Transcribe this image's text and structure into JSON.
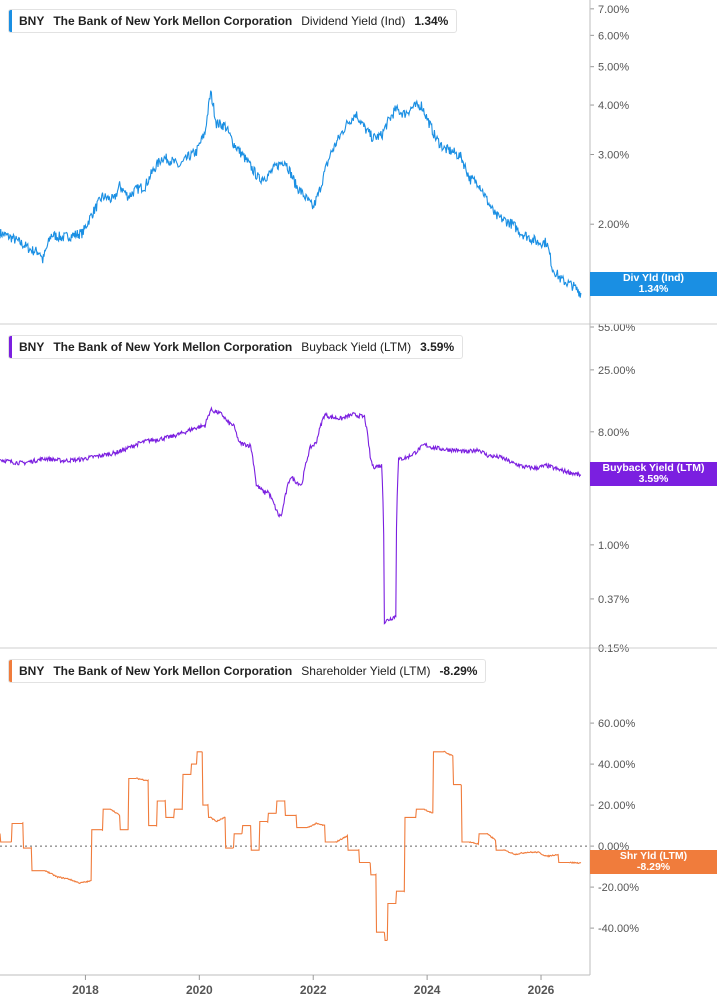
{
  "chart_data": [
    {
      "type": "line",
      "ticker": "BNY",
      "company": "The Bank of New York Mellon Corporation",
      "metric": "Dividend Yield (Ind)",
      "value_label": "1.34%",
      "tag_label": "Div Yld (Ind)",
      "tag_value": "1.34%",
      "color": "#1a8fe3",
      "yscale": "log",
      "ylim": [
        1.25,
        7.2
      ],
      "yticks": [
        {
          "v": 7,
          "label": "7.00%"
        },
        {
          "v": 6,
          "label": "6.00%"
        },
        {
          "v": 5,
          "label": "5.00%"
        },
        {
          "v": 4,
          "label": "4.00%"
        },
        {
          "v": 3,
          "label": "3.00%"
        },
        {
          "v": 2,
          "label": "2.00%"
        }
      ],
      "x": [
        2016.5,
        2016.7,
        2016.9,
        2017.05,
        2017.2,
        2017.25,
        2017.4,
        2017.6,
        2017.8,
        2017.95,
        2018.1,
        2018.3,
        2018.5,
        2018.6,
        2018.75,
        2018.9,
        2019.05,
        2019.2,
        2019.35,
        2019.5,
        2019.65,
        2019.8,
        2019.95,
        2020.1,
        2020.2,
        2020.3,
        2020.45,
        2020.6,
        2020.75,
        2020.9,
        2021.05,
        2021.2,
        2021.35,
        2021.5,
        2021.7,
        2021.85,
        2022.0,
        2022.1,
        2022.2,
        2022.3,
        2022.45,
        2022.6,
        2022.75,
        2022.9,
        2023.05,
        2023.2,
        2023.3,
        2023.45,
        2023.6,
        2023.75,
        2023.9,
        2024.0,
        2024.15,
        2024.3,
        2024.45,
        2024.6,
        2024.75,
        2024.9,
        2025.05,
        2025.2,
        2025.35,
        2025.5,
        2025.65,
        2025.8,
        2025.95,
        2026.1,
        2026.2,
        2026.35,
        2026.55,
        2026.7
      ],
      "values": [
        1.9,
        1.85,
        1.78,
        1.72,
        1.7,
        1.62,
        1.88,
        1.85,
        1.88,
        1.9,
        2.1,
        2.35,
        2.3,
        2.5,
        2.35,
        2.45,
        2.5,
        2.75,
        2.95,
        2.9,
        2.8,
        2.95,
        3.05,
        3.4,
        4.3,
        3.6,
        3.55,
        3.2,
        3.0,
        2.8,
        2.6,
        2.65,
        2.8,
        2.9,
        2.5,
        2.35,
        2.2,
        2.4,
        2.7,
        3.0,
        3.3,
        3.6,
        3.8,
        3.5,
        3.3,
        3.35,
        3.6,
        3.9,
        3.8,
        3.95,
        4.0,
        3.7,
        3.3,
        3.1,
        3.05,
        2.95,
        2.6,
        2.55,
        2.3,
        2.1,
        2.05,
        2.0,
        1.9,
        1.85,
        1.8,
        1.8,
        1.55,
        1.45,
        1.4,
        1.34
      ],
      "tag_at": 1.405
    },
    {
      "type": "line",
      "ticker": "BNY",
      "company": "The Bank of New York Mellon Corporation",
      "metric": "Buyback Yield (LTM)",
      "value_label": "3.59%",
      "tag_label": "Buyback Yield (LTM)",
      "tag_value": "3.59%",
      "color": "#7b1fe0",
      "yscale": "log",
      "ylim": [
        0.15,
        55
      ],
      "yticks": [
        {
          "v": 55,
          "label": "55.00%"
        },
        {
          "v": 25,
          "label": "25.00%"
        },
        {
          "v": 8,
          "label": "8.00%"
        },
        {
          "v": 1,
          "label": "1.00%"
        },
        {
          "v": 0.37,
          "label": "0.37%"
        },
        {
          "v": 0.15,
          "label": "0.15%"
        }
      ],
      "x": [
        2016.5,
        2016.7,
        2016.9,
        2017.1,
        2017.3,
        2017.6,
        2017.9,
        2018.1,
        2018.3,
        2018.5,
        2018.7,
        2018.95,
        2019.1,
        2019.3,
        2019.5,
        2019.7,
        2019.9,
        2020.1,
        2020.2,
        2020.4,
        2020.5,
        2020.6,
        2020.7,
        2020.9,
        2021.0,
        2021.15,
        2021.2,
        2021.35,
        2021.4,
        2021.45,
        2021.6,
        2021.7,
        2021.8,
        2021.95,
        2022.05,
        2022.2,
        2022.3,
        2022.5,
        2022.7,
        2022.9,
        2023.0,
        2023.05,
        2023.2,
        2023.25,
        2023.3,
        2023.45,
        2023.5,
        2023.65,
        2023.8,
        2023.95,
        2024.1,
        2024.3,
        2024.5,
        2024.7,
        2024.9,
        2025.05,
        2025.15,
        2025.3,
        2025.5,
        2025.7,
        2025.9,
        2026.1,
        2026.3,
        2026.5,
        2026.7
      ],
      "values": [
        4.8,
        4.6,
        4.5,
        4.7,
        4.9,
        4.7,
        4.8,
        5.0,
        5.2,
        5.4,
        5.8,
        6.5,
        6.8,
        7.0,
        7.3,
        7.8,
        8.5,
        9.0,
        12,
        11,
        9.5,
        9,
        6.5,
        6.2,
        3.0,
        2.6,
        2.7,
        1.9,
        1.7,
        1.75,
        3.5,
        3.2,
        3.0,
        6.0,
        6.5,
        11,
        10.5,
        10.2,
        11,
        10.5,
        5.0,
        4.2,
        4.3,
        0.24,
        0.25,
        0.27,
        4.8,
        5.0,
        5.5,
        6.3,
        6.0,
        5.8,
        5.7,
        5.5,
        5.8,
        5.2,
        5.1,
        5.0,
        4.5,
        4.2,
        4.1,
        4.3,
        4.0,
        3.8,
        3.59
      ],
      "tag_at": 3.59
    },
    {
      "type": "line",
      "ticker": "BNY",
      "company": "The Bank of New York Mellon Corporation",
      "metric": "Shareholder Yield (LTM)",
      "value_label": "-8.29%",
      "tag_label": "Shr Yld (LTM)",
      "tag_value": "-8.29%",
      "color": "#f07c3c",
      "yscale": "linear",
      "ylim": [
        -58,
        82
      ],
      "yticks": [
        {
          "v": 60,
          "label": "60.00%"
        },
        {
          "v": 40,
          "label": "40.00%"
        },
        {
          "v": 20,
          "label": "20.00%"
        },
        {
          "v": 0,
          "label": "0.00%"
        },
        {
          "v": -20,
          "label": "-20.00%"
        },
        {
          "v": -40,
          "label": "-40.00%"
        }
      ],
      "x": [
        2016.5,
        2016.7,
        2016.9,
        2017.05,
        2017.3,
        2017.5,
        2017.7,
        2017.9,
        2018.1,
        2018.3,
        2018.45,
        2018.6,
        2018.75,
        2018.9,
        2019.1,
        2019.25,
        2019.4,
        2019.55,
        2019.7,
        2019.85,
        2019.95,
        2020.05,
        2020.15,
        2020.2,
        2020.3,
        2020.45,
        2020.6,
        2020.75,
        2020.9,
        2021.05,
        2021.2,
        2021.35,
        2021.5,
        2021.7,
        2021.9,
        2022.05,
        2022.2,
        2022.4,
        2022.6,
        2022.8,
        2023.0,
        2023.1,
        2023.25,
        2023.3,
        2023.45,
        2023.6,
        2023.8,
        2023.95,
        2024.1,
        2024.3,
        2024.45,
        2024.6,
        2024.75,
        2024.9,
        2025.05,
        2025.2,
        2025.35,
        2025.55,
        2025.75,
        2025.95,
        2026.1,
        2026.3,
        2026.5,
        2026.7
      ],
      "values": [
        6,
        2,
        11,
        -1,
        -12,
        -15,
        -16,
        -18,
        -17,
        8,
        18,
        15,
        8,
        33,
        32,
        10,
        22,
        14,
        18,
        35,
        40,
        46,
        20,
        14,
        12,
        14,
        -1,
        6,
        10,
        -2,
        12,
        16,
        22,
        15,
        9,
        11,
        10,
        2,
        5,
        -2,
        -8,
        -14,
        -42,
        -46,
        -28,
        -22,
        14,
        18,
        16,
        46,
        44,
        30,
        2,
        1,
        6,
        3,
        -2,
        -4,
        -3,
        -3,
        -5,
        -4,
        -8,
        -8.29
      ],
      "tag_at": -8.29
    }
  ],
  "xaxis": {
    "ticks": [
      {
        "v": 2018,
        "label": "2018"
      },
      {
        "v": 2020,
        "label": "2020"
      },
      {
        "v": 2022,
        "label": "2022"
      },
      {
        "v": 2024,
        "label": "2024"
      },
      {
        "v": 2026,
        "label": "2026"
      }
    ]
  }
}
